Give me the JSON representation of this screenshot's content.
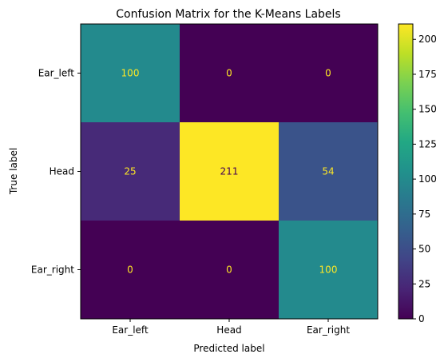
{
  "chart_data": {
    "type": "heatmap",
    "title": "Confusion Matrix for the K-Means Labels",
    "xlabel": "Predicted label",
    "ylabel": "True label",
    "x_categories": [
      "Ear_left",
      "Head",
      "Ear_right"
    ],
    "y_categories": [
      "Ear_left",
      "Head",
      "Ear_right"
    ],
    "values": [
      [
        100,
        0,
        0
      ],
      [
        25,
        211,
        54
      ],
      [
        0,
        0,
        100
      ]
    ],
    "colormap": "viridis",
    "colorbar": {
      "vmin": 0,
      "vmax": 211,
      "ticks": [
        0,
        25,
        50,
        75,
        100,
        125,
        150,
        175,
        200
      ]
    },
    "grid": false
  }
}
